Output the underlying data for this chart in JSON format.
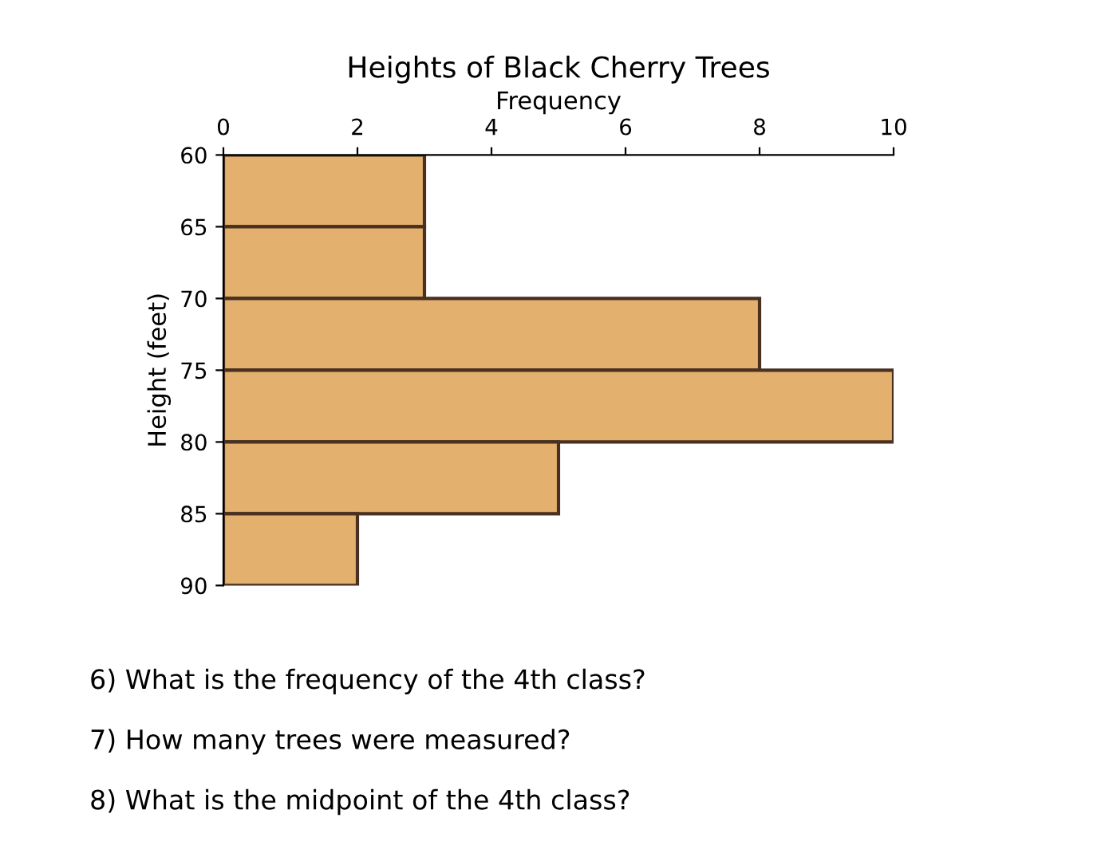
{
  "chart_data": {
    "type": "histogram",
    "orientation": "horizontal",
    "title": "Heights of Black Cherry Trees",
    "xlabel": "Frequency",
    "ylabel": "Height (feet)",
    "bins": [
      60,
      65,
      70,
      75,
      80,
      85,
      90
    ],
    "values": [
      3,
      3,
      8,
      10,
      5,
      2
    ],
    "color": "#e3b06e",
    "xlim": [
      0,
      10
    ],
    "xticks": [
      0,
      2,
      4,
      6,
      8,
      10
    ],
    "ylim": [
      90,
      60
    ],
    "yticks": [
      60,
      65,
      70,
      75,
      80,
      85,
      90
    ],
    "grid": false,
    "annotations": [
      "6) What is the frequency of the 4th class?",
      "7) How many trees were measured?",
      "8) What is the midpoint of the 4th class?"
    ]
  }
}
